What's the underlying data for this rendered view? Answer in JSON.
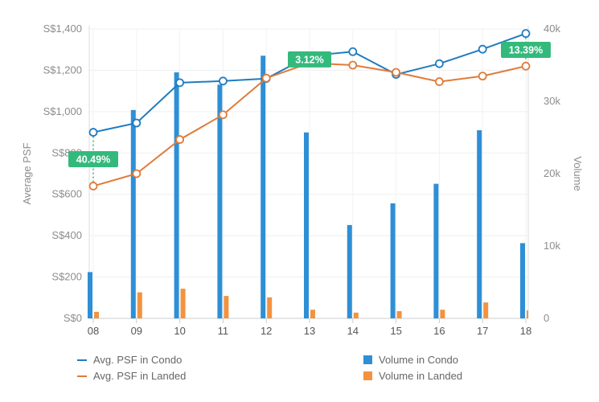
{
  "chart_data": {
    "type": "bar",
    "categories": [
      "08",
      "09",
      "10",
      "11",
      "12",
      "13",
      "14",
      "15",
      "16",
      "17",
      "18"
    ],
    "left_axis": {
      "label": "Average PSF",
      "ylim": [
        0,
        1400
      ],
      "ticks": [
        0,
        200,
        400,
        600,
        800,
        1000,
        1200,
        1400
      ],
      "tick_labels": [
        "S$0",
        "S$200",
        "S$400",
        "S$600",
        "S$800",
        "S$1,000",
        "S$1,200",
        "S$1,400"
      ]
    },
    "right_axis": {
      "label": "Volume",
      "ylim": [
        0,
        40000
      ],
      "ticks": [
        0,
        10000,
        20000,
        30000,
        40000
      ],
      "tick_labels": [
        "0",
        "10k",
        "20k",
        "30k",
        "40k"
      ]
    },
    "grid": true,
    "legend_position": "bottom",
    "series": [
      {
        "name": "Avg. PSF in Condo",
        "kind": "line",
        "axis": "left",
        "color": "#1f7cc0",
        "values": [
          900,
          945,
          1140,
          1148,
          1160,
          1270,
          1290,
          1180,
          1232,
          1302,
          1378
        ]
      },
      {
        "name": "Avg. PSF in Landed",
        "kind": "line",
        "axis": "left",
        "color": "#e07b39",
        "values": [
          640,
          700,
          865,
          985,
          1162,
          1235,
          1225,
          1190,
          1145,
          1172,
          1220
        ]
      },
      {
        "name": "Volume in Condo",
        "kind": "bar",
        "axis": "right",
        "color": "#2e8fd6",
        "values": [
          6400,
          28800,
          34000,
          32300,
          36300,
          25700,
          12900,
          15900,
          18600,
          26000,
          10400
        ]
      },
      {
        "name": "Volume in Landed",
        "kind": "bar",
        "axis": "right",
        "color": "#f39340",
        "values": [
          900,
          3600,
          4100,
          3100,
          2900,
          1200,
          800,
          1000,
          1200,
          2200,
          1100
        ]
      }
    ],
    "annotations": [
      {
        "text": "40.49%",
        "category_index": 0,
        "color": "#34b97c"
      },
      {
        "text": "3.12%",
        "category_index": 5,
        "color": "#34b97c"
      },
      {
        "text": "13.39%",
        "category_index": 10,
        "color": "#34b97c"
      }
    ]
  }
}
